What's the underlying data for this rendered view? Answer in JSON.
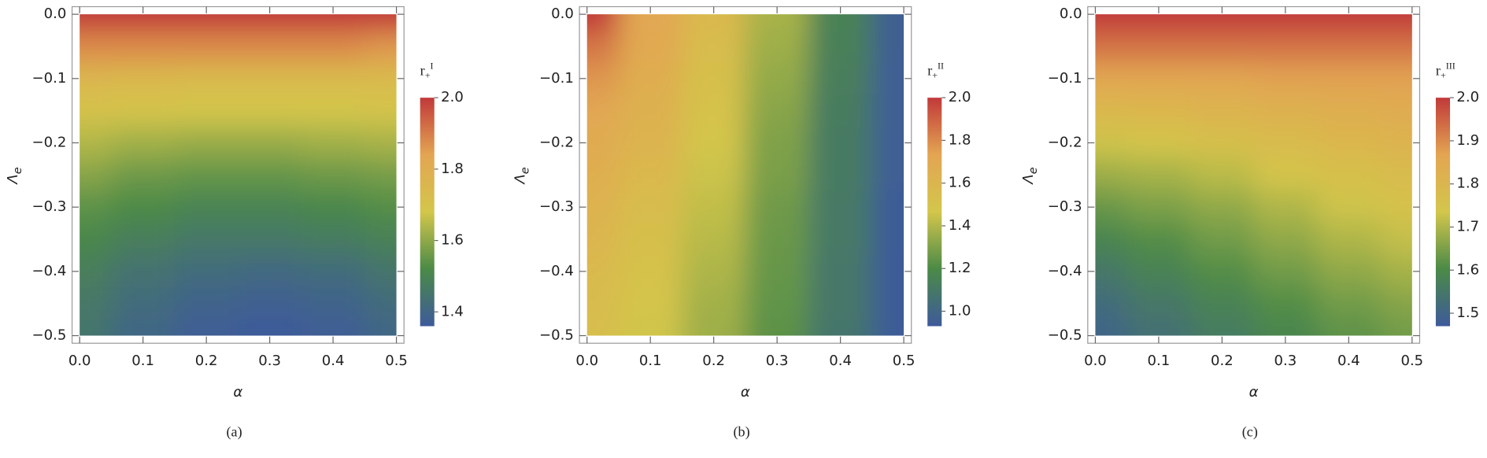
{
  "chart_data": [
    {
      "type": "heatmap",
      "caption": "(a)",
      "xlabel": "α",
      "ylabel": {
        "base": "Λ",
        "sub": "e"
      },
      "colorbar_label": {
        "base": "r",
        "sub": "+",
        "sup": "I"
      },
      "colormap": [
        "#3e5a9b",
        "#4b8a47",
        "#d3c64b",
        "#e3a552",
        "#c1393a"
      ],
      "xlim": [
        0,
        0.5
      ],
      "ylim": [
        -0.5,
        0
      ],
      "xticks": [
        {
          "value": 0,
          "label": "0.0"
        },
        0.1,
        0.2,
        0.3,
        0.4,
        0.5
      ],
      "yticks": [
        {
          "value": -0.5,
          "label": "−0.5"
        },
        {
          "value": -0.4,
          "label": "−0.4"
        },
        {
          "value": -0.3,
          "label": "−0.3"
        },
        {
          "value": -0.2,
          "label": "−0.2"
        },
        {
          "value": -0.1,
          "label": "−0.1"
        },
        {
          "value": 0,
          "label": "0.0"
        }
      ],
      "clim": [
        1.36,
        2.0
      ],
      "cticks": [
        1.4,
        1.6,
        1.8,
        {
          "value": 2.0,
          "label": "2.0"
        }
      ],
      "x": [
        0,
        0.1,
        0.2,
        0.3,
        0.4,
        0.5
      ],
      "y": [
        0,
        -0.05,
        -0.1,
        -0.15,
        -0.2,
        -0.25,
        -0.3,
        -0.35,
        -0.4,
        -0.45,
        -0.5
      ],
      "z": [
        [
          2.0,
          2.0,
          2.0,
          2.0,
          2.0,
          2.0
        ],
        [
          1.88,
          1.88,
          1.88,
          1.88,
          1.88,
          1.86
        ],
        [
          1.76,
          1.75,
          1.74,
          1.74,
          1.74,
          1.74
        ],
        [
          1.7,
          1.69,
          1.68,
          1.68,
          1.68,
          1.69
        ],
        [
          1.64,
          1.62,
          1.61,
          1.61,
          1.62,
          1.63
        ],
        [
          1.59,
          1.56,
          1.55,
          1.55,
          1.56,
          1.57
        ],
        [
          1.54,
          1.52,
          1.5,
          1.5,
          1.51,
          1.53
        ],
        [
          1.51,
          1.48,
          1.46,
          1.46,
          1.47,
          1.49
        ],
        [
          1.48,
          1.44,
          1.42,
          1.41,
          1.42,
          1.45
        ],
        [
          1.46,
          1.42,
          1.39,
          1.38,
          1.39,
          1.42
        ],
        [
          1.45,
          1.4,
          1.37,
          1.36,
          1.37,
          1.4
        ]
      ]
    },
    {
      "type": "heatmap",
      "caption": "(b)",
      "xlabel": "α",
      "ylabel": {
        "base": "Λ",
        "sub": "e"
      },
      "colorbar_label": {
        "base": "r",
        "sub": "+",
        "sup": "II"
      },
      "colormap": [
        "#3e5a9b",
        "#4b8a47",
        "#d3c64b",
        "#e3a552",
        "#c1393a"
      ],
      "xlim": [
        0,
        0.5
      ],
      "ylim": [
        -0.5,
        0
      ],
      "xticks": [
        {
          "value": 0,
          "label": "0.0"
        },
        0.1,
        0.2,
        0.3,
        0.4,
        0.5
      ],
      "yticks": [
        {
          "value": -0.5,
          "label": "−0.5"
        },
        {
          "value": -0.4,
          "label": "−0.4"
        },
        {
          "value": -0.3,
          "label": "−0.3"
        },
        {
          "value": -0.2,
          "label": "−0.2"
        },
        {
          "value": -0.1,
          "label": "−0.1"
        },
        {
          "value": 0,
          "label": "0.0"
        }
      ],
      "clim": [
        0.93,
        2.0
      ],
      "cticks": [
        {
          "value": 1.0,
          "label": "1.0"
        },
        1.2,
        1.4,
        1.6,
        1.8,
        {
          "value": 2.0,
          "label": "2.0"
        }
      ],
      "x": [
        0,
        0.1,
        0.2,
        0.3,
        0.4,
        0.5
      ],
      "y": [
        0,
        -0.05,
        -0.1,
        -0.15,
        -0.2,
        -0.25,
        -0.3,
        -0.35,
        -0.4,
        -0.45,
        -0.5
      ],
      "z": [
        [
          2.0,
          1.72,
          1.58,
          1.38,
          1.15,
          0.96
        ],
        [
          1.85,
          1.7,
          1.55,
          1.36,
          1.14,
          0.96
        ],
        [
          1.77,
          1.67,
          1.52,
          1.34,
          1.13,
          0.95
        ],
        [
          1.72,
          1.64,
          1.5,
          1.32,
          1.12,
          0.95
        ],
        [
          1.69,
          1.61,
          1.47,
          1.3,
          1.11,
          0.95
        ],
        [
          1.66,
          1.58,
          1.45,
          1.29,
          1.11,
          0.95
        ],
        [
          1.63,
          1.55,
          1.43,
          1.27,
          1.1,
          0.94
        ],
        [
          1.6,
          1.52,
          1.41,
          1.26,
          1.1,
          0.94
        ],
        [
          1.57,
          1.5,
          1.39,
          1.25,
          1.09,
          0.94
        ],
        [
          1.55,
          1.48,
          1.37,
          1.24,
          1.09,
          0.94
        ],
        [
          1.53,
          1.46,
          1.36,
          1.23,
          1.08,
          0.94
        ]
      ]
    },
    {
      "type": "heatmap",
      "caption": "(c)",
      "xlabel": "α",
      "ylabel": {
        "base": "Λ",
        "sub": "e"
      },
      "colorbar_label": {
        "base": "r",
        "sub": "+",
        "sup": "III"
      },
      "colormap": [
        "#3e5a9b",
        "#4b8a47",
        "#d3c64b",
        "#e3a552",
        "#c1393a"
      ],
      "xlim": [
        0,
        0.5
      ],
      "ylim": [
        -0.5,
        0
      ],
      "xticks": [
        {
          "value": 0,
          "label": "0.0"
        },
        0.1,
        0.2,
        0.3,
        0.4,
        0.5
      ],
      "yticks": [
        {
          "value": -0.5,
          "label": "−0.5"
        },
        {
          "value": -0.4,
          "label": "−0.4"
        },
        {
          "value": -0.3,
          "label": "−0.3"
        },
        {
          "value": -0.2,
          "label": "−0.2"
        },
        {
          "value": -0.1,
          "label": "−0.1"
        },
        {
          "value": 0,
          "label": "0.0"
        }
      ],
      "clim": [
        1.47,
        2.0
      ],
      "cticks": [
        1.5,
        1.6,
        1.7,
        1.8,
        1.9,
        {
          "value": 2.0,
          "label": "2.0"
        }
      ],
      "x": [
        0,
        0.1,
        0.2,
        0.3,
        0.4,
        0.5
      ],
      "y": [
        0,
        -0.05,
        -0.1,
        -0.15,
        -0.2,
        -0.25,
        -0.3,
        -0.35,
        -0.4,
        -0.45,
        -0.5
      ],
      "z": [
        [
          2.0,
          2.0,
          2.0,
          2.0,
          2.0,
          2.0
        ],
        [
          1.93,
          1.93,
          1.93,
          1.93,
          1.93,
          1.93
        ],
        [
          1.86,
          1.86,
          1.86,
          1.87,
          1.87,
          1.87
        ],
        [
          1.79,
          1.8,
          1.81,
          1.82,
          1.83,
          1.84
        ],
        [
          1.73,
          1.74,
          1.76,
          1.78,
          1.8,
          1.81
        ],
        [
          1.68,
          1.69,
          1.71,
          1.74,
          1.76,
          1.78
        ],
        [
          1.63,
          1.65,
          1.67,
          1.7,
          1.73,
          1.75
        ],
        [
          1.59,
          1.61,
          1.64,
          1.67,
          1.7,
          1.72
        ],
        [
          1.55,
          1.58,
          1.61,
          1.64,
          1.67,
          1.69
        ],
        [
          1.52,
          1.55,
          1.58,
          1.61,
          1.64,
          1.66
        ],
        [
          1.5,
          1.53,
          1.56,
          1.59,
          1.62,
          1.64
        ]
      ]
    }
  ]
}
